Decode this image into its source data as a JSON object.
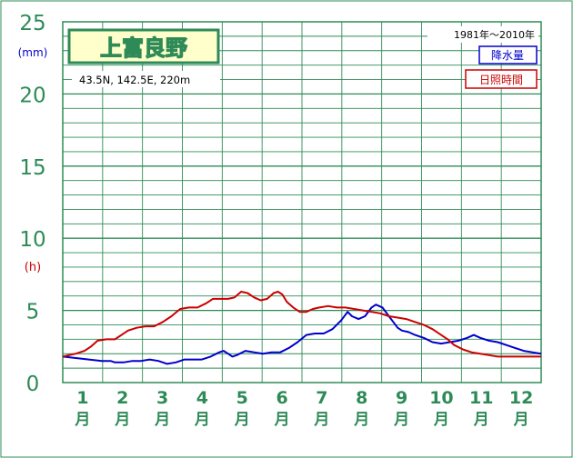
{
  "station": {
    "name": "上富良野",
    "location": "43.5N,  142.5E,  220m",
    "period": "1981年～2010年"
  },
  "units": {
    "precip": "(mm)",
    "sunshine": "(h)"
  },
  "colors": {
    "frame": "#2e8b57",
    "label_green": "#2e8b57",
    "title_bg": "#ffffcc",
    "precip_line": "#0000cc",
    "sunshine_line": "#cc0000",
    "axis_text": "#2e8b57",
    "unit_blue": "#0000cc",
    "unit_red": "#cc0000"
  },
  "chart_data": {
    "type": "line",
    "x_unit_label": "月",
    "categories": [
      "1",
      "2",
      "3",
      "4",
      "5",
      "6",
      "7",
      "8",
      "9",
      "10",
      "11",
      "12"
    ],
    "y_ticks": [
      0,
      5,
      10,
      15,
      20,
      25
    ],
    "ylim": [
      0,
      25
    ],
    "grid": true,
    "legend_position": "top-right",
    "series": [
      {
        "name": "降水量",
        "color": "#0000cc",
        "points": [
          [
            1,
            1.8
          ],
          [
            1.3,
            1.7
          ],
          [
            1.6,
            1.6
          ],
          [
            1.9,
            1.5
          ],
          [
            2.1,
            1.5
          ],
          [
            2.2,
            1.4
          ],
          [
            2.4,
            1.4
          ],
          [
            2.6,
            1.5
          ],
          [
            2.8,
            1.5
          ],
          [
            3.0,
            1.6
          ],
          [
            3.2,
            1.5
          ],
          [
            3.4,
            1.3
          ],
          [
            3.6,
            1.4
          ],
          [
            3.8,
            1.6
          ],
          [
            4.0,
            1.6
          ],
          [
            4.2,
            1.6
          ],
          [
            4.4,
            1.8
          ],
          [
            4.6,
            2.1
          ],
          [
            4.7,
            2.2
          ],
          [
            4.8,
            2.0
          ],
          [
            4.9,
            1.8
          ],
          [
            5.0,
            1.9
          ],
          [
            5.2,
            2.2
          ],
          [
            5.4,
            2.1
          ],
          [
            5.6,
            2.0
          ],
          [
            5.8,
            2.1
          ],
          [
            6.0,
            2.1
          ],
          [
            6.2,
            2.4
          ],
          [
            6.4,
            2.8
          ],
          [
            6.6,
            3.3
          ],
          [
            6.8,
            3.4
          ],
          [
            7.0,
            3.4
          ],
          [
            7.2,
            3.7
          ],
          [
            7.4,
            4.3
          ],
          [
            7.55,
            4.9
          ],
          [
            7.65,
            4.6
          ],
          [
            7.8,
            4.4
          ],
          [
            7.95,
            4.6
          ],
          [
            8.1,
            5.2
          ],
          [
            8.2,
            5.4
          ],
          [
            8.35,
            5.2
          ],
          [
            8.5,
            4.6
          ],
          [
            8.6,
            4.2
          ],
          [
            8.7,
            3.8
          ],
          [
            8.8,
            3.6
          ],
          [
            8.95,
            3.5
          ],
          [
            9.1,
            3.3
          ],
          [
            9.3,
            3.1
          ],
          [
            9.5,
            2.8
          ],
          [
            9.7,
            2.7
          ],
          [
            9.9,
            2.8
          ],
          [
            10.1,
            2.9
          ],
          [
            10.3,
            3.1
          ],
          [
            10.45,
            3.3
          ],
          [
            10.6,
            3.1
          ],
          [
            10.8,
            2.9
          ],
          [
            11.0,
            2.8
          ],
          [
            11.2,
            2.6
          ],
          [
            11.4,
            2.4
          ],
          [
            11.6,
            2.2
          ],
          [
            11.8,
            2.1
          ],
          [
            12.0,
            2.0
          ]
        ]
      },
      {
        "name": "日照時間",
        "color": "#cc0000",
        "points": [
          [
            1,
            1.8
          ],
          [
            1.3,
            2.0
          ],
          [
            1.5,
            2.2
          ],
          [
            1.65,
            2.5
          ],
          [
            1.8,
            2.9
          ],
          [
            2.0,
            3.0
          ],
          [
            2.2,
            3.0
          ],
          [
            2.35,
            3.3
          ],
          [
            2.5,
            3.6
          ],
          [
            2.7,
            3.8
          ],
          [
            2.9,
            3.9
          ],
          [
            3.1,
            3.9
          ],
          [
            3.3,
            4.2
          ],
          [
            3.5,
            4.6
          ],
          [
            3.7,
            5.1
          ],
          [
            3.9,
            5.2
          ],
          [
            4.1,
            5.2
          ],
          [
            4.3,
            5.5
          ],
          [
            4.45,
            5.8
          ],
          [
            4.6,
            5.8
          ],
          [
            4.8,
            5.8
          ],
          [
            4.95,
            5.9
          ],
          [
            5.1,
            6.3
          ],
          [
            5.25,
            6.2
          ],
          [
            5.4,
            5.9
          ],
          [
            5.55,
            5.7
          ],
          [
            5.7,
            5.8
          ],
          [
            5.85,
            6.2
          ],
          [
            5.95,
            6.3
          ],
          [
            6.05,
            6.1
          ],
          [
            6.15,
            5.6
          ],
          [
            6.3,
            5.2
          ],
          [
            6.45,
            4.9
          ],
          [
            6.6,
            4.9
          ],
          [
            6.75,
            5.1
          ],
          [
            6.9,
            5.2
          ],
          [
            7.1,
            5.3
          ],
          [
            7.3,
            5.2
          ],
          [
            7.5,
            5.2
          ],
          [
            7.7,
            5.1
          ],
          [
            7.9,
            5.0
          ],
          [
            8.1,
            4.9
          ],
          [
            8.3,
            4.8
          ],
          [
            8.5,
            4.6
          ],
          [
            8.7,
            4.5
          ],
          [
            8.9,
            4.4
          ],
          [
            9.1,
            4.2
          ],
          [
            9.3,
            4.0
          ],
          [
            9.5,
            3.7
          ],
          [
            9.7,
            3.3
          ],
          [
            9.85,
            3.0
          ],
          [
            10.0,
            2.6
          ],
          [
            10.2,
            2.3
          ],
          [
            10.4,
            2.1
          ],
          [
            10.6,
            2.0
          ],
          [
            10.8,
            1.9
          ],
          [
            11.0,
            1.8
          ],
          [
            11.4,
            1.8
          ],
          [
            11.8,
            1.8
          ],
          [
            12.0,
            1.8
          ]
        ]
      }
    ]
  }
}
